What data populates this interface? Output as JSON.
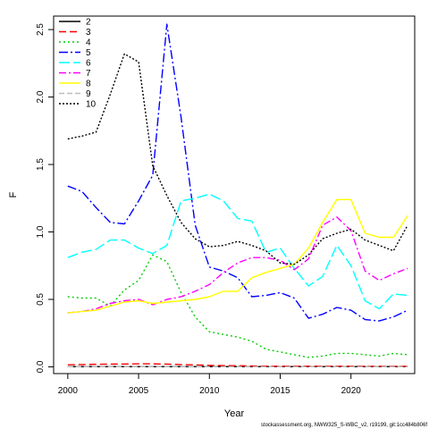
{
  "footer_text": "stockassessment.org, NWW325_S-WBC_v2, r19199, git:1cc484b806f",
  "chart_data": {
    "type": "line",
    "xlabel": "Year",
    "ylabel": "F",
    "xlim": [
      1999.0,
      2024.5
    ],
    "ylim": [
      -0.05,
      2.6
    ],
    "x_ticks": [
      2000,
      2005,
      2010,
      2015,
      2020
    ],
    "y_ticks": [
      0.0,
      0.5,
      1.0,
      1.5,
      2.0,
      2.5
    ],
    "y_tick_labels": [
      "0.0",
      "0.5",
      "1.0",
      "1.5",
      "2.0",
      "2.5"
    ],
    "legend_position": "top-left",
    "x": [
      2000,
      2001,
      2002,
      2003,
      2004,
      2005,
      2006,
      2007,
      2008,
      2009,
      2010,
      2011,
      2012,
      2013,
      2014,
      2015,
      2016,
      2017,
      2018,
      2019,
      2020,
      2021,
      2022,
      2023,
      2024
    ],
    "series": [
      {
        "name": "2",
        "color": "#000000",
        "dash": "",
        "values": [
          0.002,
          0.002,
          0.002,
          0.002,
          0.002,
          0.002,
          0.002,
          0.002,
          0.002,
          0.002,
          0.002,
          0.002,
          0.002,
          0.002,
          0.002,
          0.002,
          0.002,
          0.002,
          0.002,
          0.002,
          0.002,
          0.002,
          0.002,
          0.002,
          0.002
        ]
      },
      {
        "name": "3",
        "color": "#ff0000",
        "dash": "8,4",
        "values": [
          0.015,
          0.017,
          0.019,
          0.02,
          0.021,
          0.022,
          0.022,
          0.02,
          0.017,
          0.014,
          0.011,
          0.009,
          0.008,
          0.006,
          0.005,
          0.005,
          0.005,
          0.005,
          0.005,
          0.005,
          0.005,
          0.004,
          0.004,
          0.004,
          0.004
        ]
      },
      {
        "name": "4",
        "color": "#00cd00",
        "dash": "2,3",
        "values": [
          0.52,
          0.51,
          0.51,
          0.45,
          0.57,
          0.64,
          0.83,
          0.78,
          0.55,
          0.37,
          0.26,
          0.24,
          0.22,
          0.19,
          0.13,
          0.11,
          0.09,
          0.07,
          0.08,
          0.1,
          0.1,
          0.09,
          0.08,
          0.1,
          0.09
        ]
      },
      {
        "name": "5",
        "color": "#0000ff",
        "dash": "10,3,2,3",
        "values": [
          1.34,
          1.3,
          1.18,
          1.07,
          1.06,
          1.23,
          1.42,
          2.54,
          1.85,
          1.05,
          0.74,
          0.71,
          0.66,
          0.52,
          0.53,
          0.55,
          0.51,
          0.36,
          0.39,
          0.44,
          0.42,
          0.35,
          0.34,
          0.37,
          0.42
        ]
      },
      {
        "name": "6",
        "color": "#00ffff",
        "dash": "12,4",
        "values": [
          0.81,
          0.85,
          0.87,
          0.94,
          0.94,
          0.88,
          0.84,
          0.9,
          1.23,
          1.25,
          1.28,
          1.23,
          1.1,
          1.08,
          0.85,
          0.88,
          0.73,
          0.6,
          0.67,
          0.9,
          0.75,
          0.49,
          0.43,
          0.54,
          0.53
        ]
      },
      {
        "name": "7",
        "color": "#ff00ff",
        "dash": "8,3,2,3",
        "values": [
          0.4,
          0.41,
          0.43,
          0.47,
          0.49,
          0.5,
          0.46,
          0.5,
          0.52,
          0.56,
          0.61,
          0.7,
          0.77,
          0.81,
          0.81,
          0.79,
          0.72,
          0.8,
          1.05,
          1.11,
          1.01,
          0.71,
          0.64,
          0.69,
          0.73
        ]
      },
      {
        "name": "8",
        "color": "#ffff00",
        "dash": "",
        "values": [
          0.4,
          0.41,
          0.42,
          0.45,
          0.48,
          0.49,
          0.47,
          0.48,
          0.49,
          0.5,
          0.52,
          0.56,
          0.56,
          0.66,
          0.7,
          0.73,
          0.76,
          0.88,
          1.07,
          1.24,
          1.24,
          0.99,
          0.96,
          0.96,
          1.12
        ]
      },
      {
        "name": "9",
        "color": "#bebebe",
        "dash": "6,3",
        "values": [
          0.001,
          0.001,
          0.001,
          0.001,
          0.001,
          0.001,
          0.001,
          0.001,
          0.001,
          0.001,
          0.001,
          0.001,
          0.001,
          0.001,
          0.001,
          0.001,
          0.001,
          0.001,
          0.001,
          0.001,
          0.001,
          0.001,
          0.001,
          0.001,
          0.001
        ]
      },
      {
        "name": "10",
        "color": "#000000",
        "dash": "2,2",
        "values": [
          1.69,
          1.71,
          1.74,
          2.02,
          2.32,
          2.26,
          1.49,
          1.27,
          1.07,
          0.95,
          0.89,
          0.9,
          0.93,
          0.9,
          0.86,
          0.77,
          0.76,
          0.83,
          0.95,
          0.99,
          1.02,
          0.94,
          0.9,
          0.86,
          1.05
        ]
      }
    ]
  }
}
